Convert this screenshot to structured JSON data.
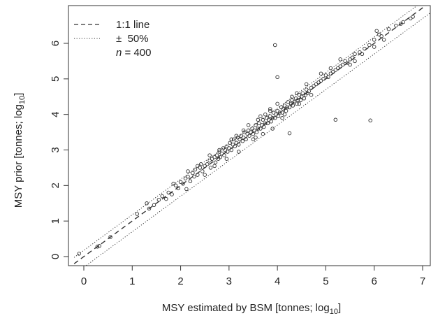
{
  "chart_data": {
    "type": "scatter",
    "title": "",
    "xlabel": "MSY estimated by BSM [tonnes; log",
    "xlabel_sub": "10",
    "xlabel_end": "]",
    "ylabel": "MSY prior [tonnes; log",
    "ylabel_sub": "10",
    "ylabel_end": "]",
    "xlim": [
      0,
      7
    ],
    "ylim": [
      0,
      6.8
    ],
    "xticks": [
      "0",
      "1",
      "2",
      "3",
      "4",
      "5",
      "6",
      "7"
    ],
    "yticks": [
      "0",
      "1",
      "2",
      "3",
      "4",
      "5",
      "6"
    ],
    "grid": false,
    "legend_position": "top-left",
    "legend": [
      {
        "label": "1:1 line",
        "style": "dashed"
      },
      {
        "label": "±  50%",
        "style": "dotted"
      },
      {
        "label_prefix": "n",
        "label": " = 400",
        "style": "none"
      }
    ],
    "reference_lines": [
      {
        "name": "1:1 line",
        "offset": 0,
        "style": "dashed"
      },
      {
        "name": "+50%",
        "offset": 0.176,
        "style": "dotted"
      },
      {
        "name": "-50%",
        "offset": -0.301,
        "style": "dotted"
      }
    ],
    "outliers": [
      [
        3.95,
        5.95
      ],
      [
        4.0,
        5.05
      ],
      [
        5.2,
        3.85
      ],
      [
        5.92,
        3.83
      ],
      [
        4.25,
        3.47
      ],
      [
        3.85,
        4.15
      ]
    ],
    "series": [
      {
        "values": [
          [
            -0.1,
            0.08
          ],
          [
            0.28,
            0.28
          ],
          [
            0.32,
            0.3
          ],
          [
            0.55,
            0.55
          ],
          [
            1.1,
            1.2
          ],
          [
            1.3,
            1.5
          ],
          [
            1.35,
            1.35
          ],
          [
            1.45,
            1.45
          ],
          [
            1.55,
            1.6
          ],
          [
            1.62,
            1.7
          ],
          [
            1.7,
            1.62
          ],
          [
            1.75,
            1.8
          ],
          [
            1.82,
            1.75
          ],
          [
            1.9,
            2.0
          ],
          [
            1.95,
            1.92
          ],
          [
            2.0,
            2.1
          ],
          [
            2.05,
            2.05
          ],
          [
            2.1,
            2.2
          ],
          [
            2.12,
            1.9
          ],
          [
            2.15,
            2.25
          ],
          [
            2.2,
            2.12
          ],
          [
            2.25,
            2.35
          ],
          [
            2.28,
            2.25
          ],
          [
            2.3,
            2.45
          ],
          [
            2.35,
            2.3
          ],
          [
            2.4,
            2.5
          ],
          [
            2.42,
            2.6
          ],
          [
            2.45,
            2.4
          ],
          [
            2.5,
            2.55
          ],
          [
            2.55,
            2.6
          ],
          [
            2.6,
            2.7
          ],
          [
            2.62,
            2.5
          ],
          [
            2.65,
            2.75
          ],
          [
            2.7,
            2.8
          ],
          [
            2.72,
            2.65
          ],
          [
            2.75,
            2.85
          ],
          [
            2.78,
            2.75
          ],
          [
            2.8,
            2.95
          ],
          [
            2.82,
            2.8
          ],
          [
            2.85,
            2.9
          ],
          [
            2.88,
            3.05
          ],
          [
            2.9,
            2.85
          ],
          [
            2.92,
            3.0
          ],
          [
            2.95,
            3.1
          ],
          [
            2.97,
            2.95
          ],
          [
            3.0,
            3.05
          ],
          [
            3.02,
            3.2
          ],
          [
            3.05,
            3.0
          ],
          [
            3.08,
            3.15
          ],
          [
            3.1,
            3.3
          ],
          [
            3.12,
            3.1
          ],
          [
            3.15,
            3.2
          ],
          [
            3.18,
            3.35
          ],
          [
            3.2,
            3.15
          ],
          [
            3.22,
            3.3
          ],
          [
            3.25,
            3.4
          ],
          [
            3.28,
            3.25
          ],
          [
            3.3,
            3.35
          ],
          [
            3.32,
            3.5
          ],
          [
            3.35,
            3.3
          ],
          [
            3.38,
            3.45
          ],
          [
            3.4,
            3.55
          ],
          [
            3.42,
            3.4
          ],
          [
            3.45,
            3.5
          ],
          [
            3.48,
            3.6
          ],
          [
            3.5,
            3.45
          ],
          [
            3.52,
            3.55
          ],
          [
            3.55,
            3.7
          ],
          [
            3.57,
            3.5
          ],
          [
            3.6,
            3.6
          ],
          [
            3.62,
            3.75
          ],
          [
            3.65,
            3.6
          ],
          [
            3.68,
            3.7
          ],
          [
            3.7,
            3.85
          ],
          [
            3.72,
            3.65
          ],
          [
            3.75,
            3.75
          ],
          [
            3.78,
            3.9
          ],
          [
            3.8,
            3.75
          ],
          [
            3.82,
            3.85
          ],
          [
            3.85,
            3.95
          ],
          [
            3.87,
            3.8
          ],
          [
            3.9,
            3.9
          ],
          [
            3.92,
            4.05
          ],
          [
            3.95,
            3.9
          ],
          [
            3.97,
            4.0
          ],
          [
            4.0,
            4.1
          ],
          [
            4.02,
            3.95
          ],
          [
            4.05,
            4.05
          ],
          [
            4.08,
            4.2
          ],
          [
            4.1,
            4.05
          ],
          [
            4.12,
            4.15
          ],
          [
            4.15,
            4.25
          ],
          [
            4.18,
            4.1
          ],
          [
            4.2,
            4.2
          ],
          [
            4.22,
            4.35
          ],
          [
            4.25,
            4.2
          ],
          [
            4.28,
            4.3
          ],
          [
            4.3,
            4.4
          ],
          [
            4.32,
            4.25
          ],
          [
            4.35,
            4.35
          ],
          [
            4.38,
            4.45
          ],
          [
            4.4,
            4.3
          ],
          [
            4.42,
            4.4
          ],
          [
            4.45,
            4.55
          ],
          [
            4.48,
            4.4
          ],
          [
            4.5,
            4.5
          ],
          [
            4.52,
            4.6
          ],
          [
            4.55,
            4.45
          ],
          [
            4.58,
            4.55
          ],
          [
            4.6,
            4.7
          ],
          [
            4.62,
            4.6
          ],
          [
            4.65,
            4.65
          ],
          [
            4.7,
            4.75
          ],
          [
            4.75,
            4.8
          ],
          [
            4.8,
            4.85
          ],
          [
            4.85,
            4.9
          ],
          [
            4.9,
            4.95
          ],
          [
            4.95,
            5.0
          ],
          [
            5.0,
            5.1
          ],
          [
            5.05,
            5.05
          ],
          [
            5.1,
            5.15
          ],
          [
            5.15,
            5.2
          ],
          [
            5.2,
            5.25
          ],
          [
            5.25,
            5.3
          ],
          [
            5.3,
            5.35
          ],
          [
            5.35,
            5.4
          ],
          [
            5.4,
            5.5
          ],
          [
            5.45,
            5.45
          ],
          [
            5.5,
            5.55
          ],
          [
            5.55,
            5.6
          ],
          [
            5.6,
            5.7
          ],
          [
            5.7,
            5.75
          ],
          [
            5.8,
            5.85
          ],
          [
            5.9,
            5.95
          ],
          [
            6.0,
            6.1
          ],
          [
            6.05,
            6.35
          ],
          [
            6.1,
            6.25
          ],
          [
            6.15,
            6.2
          ],
          [
            6.2,
            6.1
          ],
          [
            6.3,
            6.4
          ],
          [
            6.45,
            6.5
          ],
          [
            6.55,
            6.55
          ],
          [
            6.6,
            6.6
          ],
          [
            6.75,
            6.7
          ],
          [
            6.8,
            6.75
          ],
          [
            3.9,
            3.6
          ],
          [
            3.5,
            3.3
          ],
          [
            3.2,
            2.95
          ],
          [
            2.95,
            2.75
          ],
          [
            3.7,
            3.45
          ],
          [
            4.1,
            3.9
          ],
          [
            3.3,
            3.55
          ],
          [
            3.6,
            3.85
          ],
          [
            2.8,
            3.0
          ],
          [
            2.6,
            2.85
          ],
          [
            3.05,
            3.3
          ],
          [
            3.4,
            3.7
          ],
          [
            3.75,
            4.0
          ],
          [
            4.4,
            4.6
          ],
          [
            4.6,
            4.85
          ],
          [
            5.1,
            5.3
          ],
          [
            4.0,
            4.3
          ],
          [
            3.85,
            4.1
          ],
          [
            2.35,
            2.55
          ],
          [
            2.15,
            2.4
          ],
          [
            1.85,
            2.05
          ],
          [
            5.3,
            5.55
          ],
          [
            5.5,
            5.4
          ],
          [
            4.9,
            5.15
          ],
          [
            4.3,
            4.5
          ],
          [
            3.65,
            3.95
          ],
          [
            3.15,
            3.4
          ],
          [
            2.7,
            2.55
          ],
          [
            2.5,
            2.3
          ],
          [
            3.55,
            3.35
          ],
          [
            4.15,
            4.0
          ],
          [
            4.45,
            4.3
          ],
          [
            4.7,
            4.55
          ],
          [
            5.6,
            5.5
          ],
          [
            5.75,
            5.7
          ],
          [
            6.0,
            5.9
          ]
        ]
      }
    ]
  }
}
